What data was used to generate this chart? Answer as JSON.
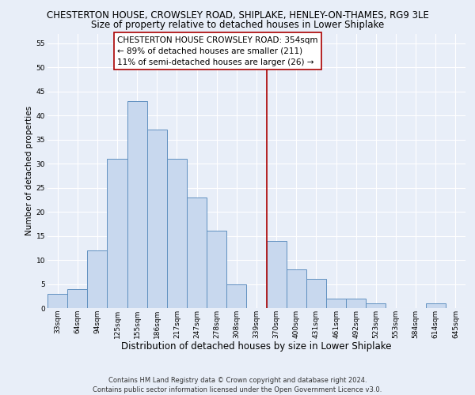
{
  "title": "CHESTERTON HOUSE, CROWSLEY ROAD, SHIPLAKE, HENLEY-ON-THAMES, RG9 3LE",
  "subtitle": "Size of property relative to detached houses in Lower Shiplake",
  "xlabel": "Distribution of detached houses by size in Lower Shiplake",
  "ylabel": "Number of detached properties",
  "bin_labels": [
    "33sqm",
    "64sqm",
    "94sqm",
    "125sqm",
    "155sqm",
    "186sqm",
    "217sqm",
    "247sqm",
    "278sqm",
    "308sqm",
    "339sqm",
    "370sqm",
    "400sqm",
    "431sqm",
    "461sqm",
    "492sqm",
    "523sqm",
    "553sqm",
    "584sqm",
    "614sqm",
    "645sqm"
  ],
  "bar_heights": [
    3,
    4,
    12,
    31,
    43,
    37,
    31,
    23,
    16,
    5,
    0,
    14,
    8,
    6,
    2,
    2,
    1,
    0,
    0,
    1,
    0
  ],
  "bar_color": "#c8d8ee",
  "bar_edge_color": "#6090c0",
  "vline_x": 11.0,
  "vline_color": "#aa0000",
  "ylim": [
    0,
    57
  ],
  "yticks": [
    0,
    5,
    10,
    15,
    20,
    25,
    30,
    35,
    40,
    45,
    50,
    55
  ],
  "annotation_title": "CHESTERTON HOUSE CROWSLEY ROAD: 354sqm",
  "annotation_line1": "← 89% of detached houses are smaller (211)",
  "annotation_line2": "11% of semi-detached houses are larger (26) →",
  "footer_line1": "Contains HM Land Registry data © Crown copyright and database right 2024.",
  "footer_line2": "Contains public sector information licensed under the Open Government Licence v3.0.",
  "background_color": "#e8eef8",
  "grid_color": "#ffffff",
  "title_fontsize": 8.5,
  "subtitle_fontsize": 8.5,
  "xlabel_fontsize": 8.5,
  "ylabel_fontsize": 7.5,
  "tick_fontsize": 6.5,
  "annotation_fontsize": 7.5,
  "footer_fontsize": 6.0
}
